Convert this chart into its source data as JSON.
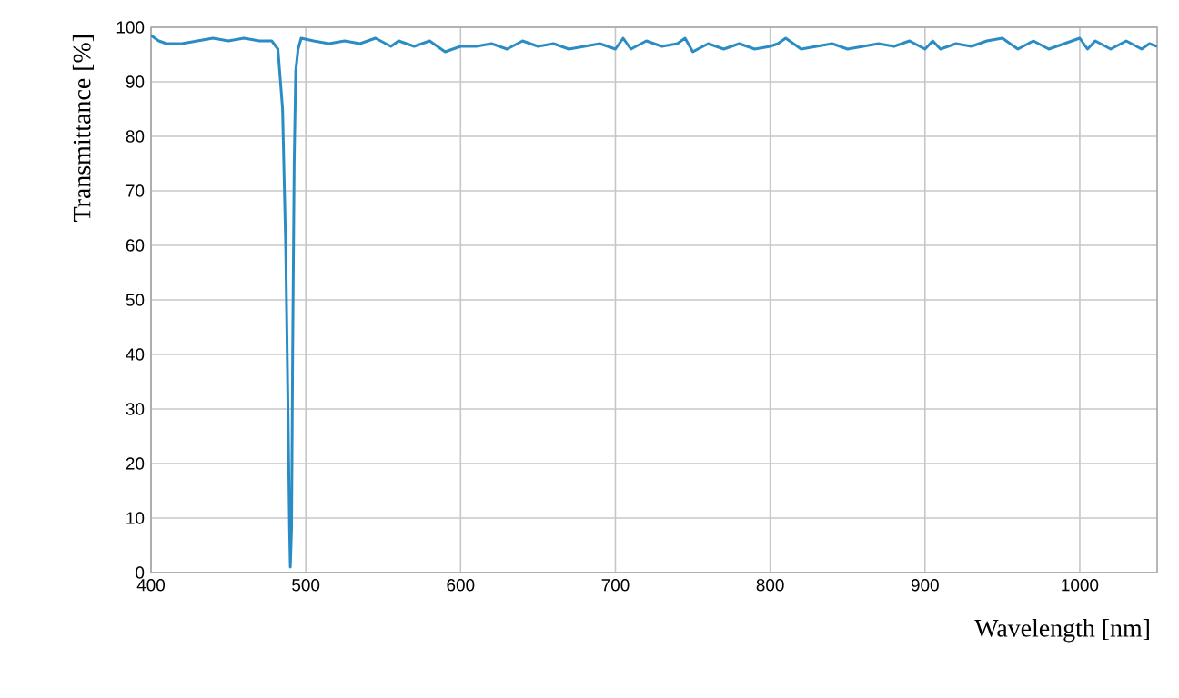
{
  "chart_data": {
    "type": "line",
    "xlabel": "Wavelength [nm]",
    "ylabel": "Transmittance [%]",
    "xlim": [
      400,
      1050
    ],
    "ylim": [
      0,
      100
    ],
    "xticks": [
      400,
      500,
      600,
      700,
      800,
      900,
      1000
    ],
    "yticks": [
      0,
      10,
      20,
      30,
      40,
      50,
      60,
      70,
      80,
      90,
      100
    ],
    "grid": true,
    "series": [
      {
        "color": "#2a8cc4",
        "x": [
          400,
          405,
          410,
          420,
          430,
          440,
          450,
          460,
          470,
          478,
          482,
          485,
          487,
          488.5,
          489.5,
          490,
          490.8,
          491.5,
          492.5,
          493.5,
          495,
          497,
          505,
          515,
          525,
          535,
          545,
          555,
          560,
          570,
          580,
          590,
          595,
          600,
          610,
          620,
          630,
          640,
          650,
          660,
          670,
          680,
          690,
          700,
          705,
          710,
          720,
          730,
          740,
          745,
          750,
          760,
          770,
          780,
          790,
          800,
          805,
          810,
          820,
          830,
          840,
          850,
          860,
          870,
          880,
          890,
          900,
          905,
          910,
          920,
          930,
          940,
          950,
          960,
          970,
          980,
          990,
          1000,
          1005,
          1010,
          1020,
          1030,
          1040,
          1045,
          1050
        ],
        "values": [
          98.5,
          97.5,
          97,
          97,
          97.5,
          98,
          97.5,
          98,
          97.5,
          97.5,
          96,
          85,
          60,
          30,
          8,
          1,
          8,
          40,
          75,
          92,
          96,
          98,
          97.5,
          97,
          97.5,
          97,
          98,
          96.5,
          97.5,
          96.5,
          97.5,
          95.5,
          96,
          96.5,
          96.5,
          97,
          96,
          97.5,
          96.5,
          97,
          96,
          96.5,
          97,
          96,
          98,
          96,
          97.5,
          96.5,
          97,
          98,
          95.5,
          97,
          96,
          97,
          96,
          96.5,
          97,
          98,
          96,
          96.5,
          97,
          96,
          96.5,
          97,
          96.5,
          97.5,
          96,
          97.5,
          96,
          97,
          96.5,
          97.5,
          98,
          96,
          97.5,
          96,
          97,
          98,
          96,
          97.5,
          96,
          97.5,
          96,
          97,
          96.5
        ]
      }
    ]
  }
}
